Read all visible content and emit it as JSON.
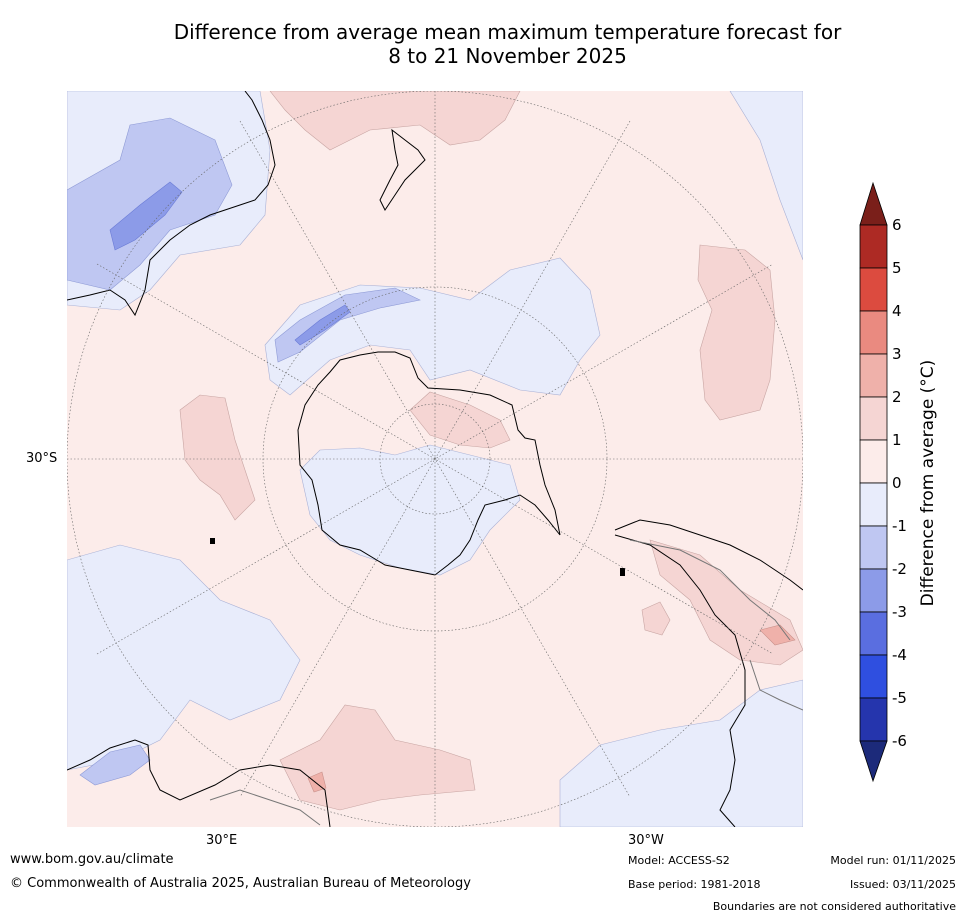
{
  "title": {
    "line1": "Difference from average mean maximum temperature forecast for",
    "line2": "8 to 21 November 2025"
  },
  "axis_labels": {
    "lat_30s": "30°S",
    "lon_30e": "30°E",
    "lon_30w": "30°W"
  },
  "colorbar": {
    "label": "Difference from average (°C)",
    "ticks": [
      "6",
      "5",
      "4",
      "3",
      "2",
      "1",
      "0",
      "-1",
      "-2",
      "-3",
      "-4",
      "-5",
      "-6"
    ],
    "colors": {
      "above_6": "#7a1f1a",
      "5_to_6": "#ad2a24",
      "4_to_5": "#dc4b3f",
      "3_to_4": "#ea8a80",
      "2_to_3": "#efb1aa",
      "1_to_2": "#f5d5d3",
      "0_to_1": "#fcecea",
      "m1_to_0": "#e8ecfb",
      "m2_to_m1": "#bfc7f2",
      "m3_to_m2": "#8c9be8",
      "m4_to_m3": "#5a6ee0",
      "m5_to_m4": "#2f4fe0",
      "m6_to_m5": "#2535ad",
      "below_m6": "#1c2a7a"
    }
  },
  "footer": {
    "website": "www.bom.gov.au/climate",
    "copyright": "© Commonwealth of Australia 2025, Australian Bureau of Meteorology",
    "model": "Model: ACCESS-S2",
    "base_period": "Base period: 1981-2018",
    "model_run": "Model run: 01/11/2025",
    "issued": "Issued: 03/11/2025",
    "disclaimer": "Boundaries are not considered authoritative"
  }
}
